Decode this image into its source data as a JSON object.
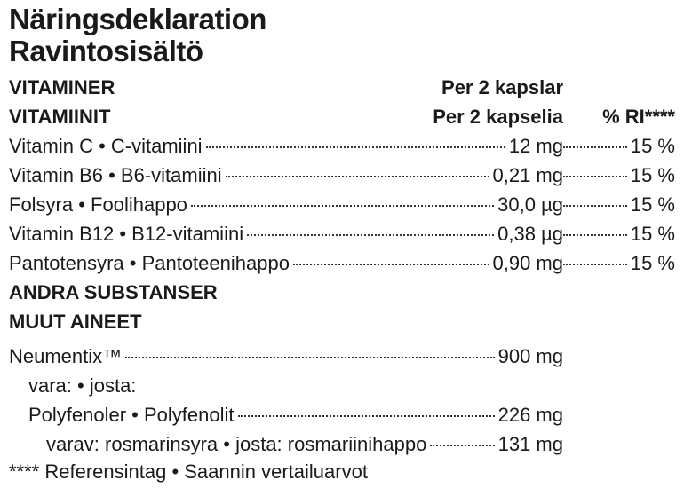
{
  "header": {
    "title_sv": "Näringsdeklaration",
    "title_fi": "Ravintosisältö"
  },
  "vitamins": {
    "heading_sv": "VITAMINER",
    "heading_fi": "VITAMIINIT",
    "per_sv": "Per 2 kapslar",
    "per_fi": "Per 2 kapselia",
    "ri_header": "% RI****",
    "rows": [
      {
        "name": "Vitamin C • C-vitamiini",
        "amount": "12 mg",
        "ri": "15 %"
      },
      {
        "name": "Vitamin B6 • B6-vitamiini",
        "amount": "0,21 mg",
        "ri": "15 %"
      },
      {
        "name": "Folsyra • Foolihappo",
        "amount": "30,0 µg",
        "ri": "15 %"
      },
      {
        "name": "Vitamin B12 • B12-vitamiini",
        "amount": "0,38 µg",
        "ri": "15 %"
      },
      {
        "name": "Pantotensyra • Pantoteenihappo",
        "amount": "0,90 mg",
        "ri": "15 %"
      }
    ]
  },
  "other": {
    "heading_sv": "ANDRA SUBSTANSER",
    "heading_fi": "MUUT AINEET",
    "rows": [
      {
        "name": "Neumentix™",
        "amount": "900 mg"
      },
      {
        "name": "vara: • josta:"
      },
      {
        "name": "Polyfenoler • Polyfenolit",
        "amount": "226 mg"
      },
      {
        "name": "varav: rosmarinsyra • josta: rosmariinihappo",
        "amount": "131 mg"
      }
    ]
  },
  "footnote": "**** Referensintag • Saannin vertailuarvot"
}
